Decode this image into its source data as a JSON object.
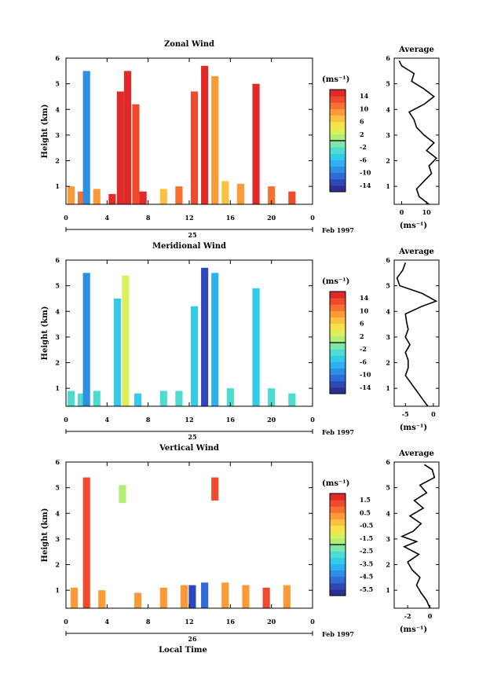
{
  "layout_note": "",
  "colorscale": [
    "#2b2f8f",
    "#2f48b8",
    "#2f6ad6",
    "#2d8ee6",
    "#2fb0f0",
    "#33cce8",
    "#4fdcd0",
    "#7ee6a8",
    "#b0ee78",
    "#dcf05a",
    "#f6e24a",
    "#fbc23f",
    "#fb9a36",
    "#f8702f",
    "#f04a2c",
    "#e02a28"
  ],
  "panels": [
    {
      "title": "Zonal Wind",
      "ylabel": "Height (km)",
      "yticks": [
        "1",
        "2",
        "3",
        "4",
        "5",
        "6"
      ],
      "xticks": [
        "0",
        "4",
        "8",
        "12",
        "16",
        "20",
        "0"
      ],
      "date_day": "25",
      "date_label": "Feb 1997",
      "cbar_unit": "(ms⁻¹)",
      "cbar_labels": [
        "14",
        "10",
        "6",
        "2",
        "-2",
        "-6",
        "-10",
        "-14"
      ],
      "profile_title": "Average",
      "profile_xticks": [
        "0",
        "10"
      ],
      "profile_xlabel": "(ms⁻¹)",
      "profile_yticks": [
        "1",
        "2",
        "3",
        "4",
        "5",
        "6"
      ]
    },
    {
      "title": "Meridional Wind",
      "ylabel": "Height (km)",
      "yticks": [
        "1",
        "2",
        "3",
        "4",
        "5",
        "6"
      ],
      "xticks": [
        "0",
        "4",
        "8",
        "12",
        "16",
        "20",
        "0"
      ],
      "date_day": "25",
      "date_label": "Feb 1997",
      "cbar_unit": "(ms⁻¹)",
      "cbar_labels": [
        "14",
        "10",
        "6",
        "2",
        "-2",
        "-6",
        "-10",
        "-14"
      ],
      "profile_title": "Average",
      "profile_xticks": [
        "-5",
        "0"
      ],
      "profile_xlabel": "(ms⁻¹)",
      "profile_yticks": [
        "1",
        "2",
        "3",
        "4",
        "5",
        "6"
      ]
    },
    {
      "title": "Vertical Wind",
      "ylabel": "Height (km)",
      "yticks": [
        "1",
        "2",
        "3",
        "4",
        "5",
        "6"
      ],
      "xticks": [
        "0",
        "4",
        "8",
        "12",
        "16",
        "20",
        "0"
      ],
      "date_day": "26",
      "date_label": "Feb 1997",
      "xlabel": "Local Time",
      "cbar_unit": "(ms⁻¹)",
      "cbar_labels": [
        "1.5",
        "0.5",
        "-0.5",
        "-1.5",
        "-2.5",
        "-3.5",
        "-4.5",
        "-5.5"
      ],
      "profile_title": "Average",
      "profile_xticks": [
        "-2",
        "0"
      ],
      "profile_xlabel": "(ms⁻¹)",
      "profile_yticks": [
        "1",
        "2",
        "3",
        "4",
        "5",
        "6"
      ]
    }
  ],
  "chart_data": [
    {
      "type": "heatmap",
      "title": "Zonal Wind",
      "ylabel": "Height (km)",
      "xlim": [
        0,
        24
      ],
      "ylim": [
        0.3,
        6
      ],
      "colorbar_range": [
        -16,
        16
      ],
      "columns": [
        {
          "x": 0.5,
          "y0": 0.3,
          "y1": 1.0,
          "v": 8
        },
        {
          "x": 1.5,
          "y0": 0.3,
          "y1": 0.8,
          "v": 10
        },
        {
          "x": 2.0,
          "y0": 0.3,
          "y1": 5.5,
          "v": -10
        },
        {
          "x": 3.0,
          "y0": 0.3,
          "y1": 0.9,
          "v": 9
        },
        {
          "x": 4.5,
          "y0": 0.3,
          "y1": 0.7,
          "v": 14
        },
        {
          "x": 5.3,
          "y0": 0.3,
          "y1": 4.7,
          "v": 15
        },
        {
          "x": 6.0,
          "y0": 0.3,
          "y1": 5.5,
          "v": 15
        },
        {
          "x": 6.8,
          "y0": 0.3,
          "y1": 4.2,
          "v": 12
        },
        {
          "x": 7.5,
          "y0": 0.3,
          "y1": 0.8,
          "v": 14
        },
        {
          "x": 9.5,
          "y0": 0.3,
          "y1": 0.9,
          "v": 6
        },
        {
          "x": 11.0,
          "y0": 0.3,
          "y1": 1.0,
          "v": 10
        },
        {
          "x": 12.5,
          "y0": 0.3,
          "y1": 4.7,
          "v": 13
        },
        {
          "x": 13.5,
          "y0": 0.3,
          "y1": 5.7,
          "v": 15
        },
        {
          "x": 14.5,
          "y0": 0.3,
          "y1": 5.3,
          "v": 8
        },
        {
          "x": 15.5,
          "y0": 0.3,
          "y1": 1.2,
          "v": 6
        },
        {
          "x": 17.0,
          "y0": 0.3,
          "y1": 1.1,
          "v": 9
        },
        {
          "x": 18.5,
          "y0": 0.3,
          "y1": 5.0,
          "v": 15
        },
        {
          "x": 20.0,
          "y0": 0.3,
          "y1": 1.0,
          "v": 10
        },
        {
          "x": 22.0,
          "y0": 0.3,
          "y1": 0.8,
          "v": 12
        }
      ],
      "profile": {
        "xlim": [
          -3,
          15
        ],
        "h": [
          0.3,
          0.6,
          0.9,
          1.2,
          1.5,
          1.8,
          2.1,
          2.4,
          2.7,
          3.0,
          3.3,
          3.6,
          3.9,
          4.2,
          4.5,
          4.8,
          5.1,
          5.4,
          5.7,
          5.9
        ],
        "v": [
          11,
          7,
          6,
          9,
          12,
          11,
          14,
          10,
          13,
          9,
          6,
          5,
          3,
          9,
          13,
          9,
          4,
          5,
          0,
          -1
        ]
      }
    },
    {
      "type": "heatmap",
      "title": "Meridional Wind",
      "ylabel": "Height (km)",
      "xlim": [
        0,
        24
      ],
      "ylim": [
        0.3,
        6
      ],
      "colorbar_range": [
        -16,
        16
      ],
      "columns": [
        {
          "x": 0.5,
          "y0": 0.3,
          "y1": 0.9,
          "v": -3
        },
        {
          "x": 1.5,
          "y0": 0.3,
          "y1": 0.8,
          "v": -4
        },
        {
          "x": 2.0,
          "y0": 0.3,
          "y1": 5.5,
          "v": -10
        },
        {
          "x": 3.0,
          "y0": 0.3,
          "y1": 0.9,
          "v": -4
        },
        {
          "x": 5.0,
          "y0": 0.3,
          "y1": 4.5,
          "v": -6
        },
        {
          "x": 5.8,
          "y0": 0.3,
          "y1": 5.4,
          "v": 2
        },
        {
          "x": 7.0,
          "y0": 0.3,
          "y1": 0.8,
          "v": -5
        },
        {
          "x": 9.5,
          "y0": 0.3,
          "y1": 0.9,
          "v": -3
        },
        {
          "x": 11.0,
          "y0": 0.3,
          "y1": 0.9,
          "v": -4
        },
        {
          "x": 12.5,
          "y0": 0.3,
          "y1": 4.2,
          "v": -6
        },
        {
          "x": 13.5,
          "y0": 0.3,
          "y1": 5.7,
          "v": -13
        },
        {
          "x": 14.5,
          "y0": 0.3,
          "y1": 5.5,
          "v": -8
        },
        {
          "x": 16.0,
          "y0": 0.3,
          "y1": 1.0,
          "v": -4
        },
        {
          "x": 18.5,
          "y0": 0.3,
          "y1": 4.9,
          "v": -6
        },
        {
          "x": 20.0,
          "y0": 0.3,
          "y1": 1.0,
          "v": -3
        },
        {
          "x": 22.0,
          "y0": 0.3,
          "y1": 0.8,
          "v": -4
        }
      ],
      "profile": {
        "xlim": [
          -7,
          1
        ],
        "h": [
          0.3,
          0.6,
          0.9,
          1.2,
          1.5,
          1.8,
          2.1,
          2.4,
          2.7,
          3.0,
          3.3,
          3.6,
          3.9,
          4.2,
          4.4,
          4.7,
          5.0,
          5.3,
          5.6,
          5.9
        ],
        "v": [
          -1,
          -2,
          -3,
          -4,
          -5,
          -4.5,
          -4.5,
          -5,
          -4.2,
          -5,
          -4.5,
          -4.8,
          -5,
          -2,
          0.5,
          -2,
          -6,
          -6.5,
          -5.5,
          -5
        ]
      }
    },
    {
      "type": "heatmap",
      "title": "Vertical Wind",
      "xlabel": "Local Time",
      "ylabel": "Height (km)",
      "xlim": [
        0,
        24
      ],
      "ylim": [
        0.3,
        6
      ],
      "colorbar_range": [
        -6.5,
        2.5
      ],
      "columns": [
        {
          "x": 0.8,
          "y0": 0.3,
          "y1": 1.1,
          "v": 0.3
        },
        {
          "x": 2.0,
          "y0": 0.3,
          "y1": 5.4,
          "v": 1.4
        },
        {
          "x": 3.5,
          "y0": 0.3,
          "y1": 1.0,
          "v": 0.5
        },
        {
          "x": 5.5,
          "y0": 4.4,
          "y1": 5.1,
          "v": -1.5
        },
        {
          "x": 7.0,
          "y0": 0.3,
          "y1": 0.9,
          "v": 0.4
        },
        {
          "x": 9.5,
          "y0": 0.3,
          "y1": 1.1,
          "v": 0.6
        },
        {
          "x": 11.5,
          "y0": 0.3,
          "y1": 1.2,
          "v": 0.4
        },
        {
          "x": 12.3,
          "y0": 0.3,
          "y1": 1.2,
          "v": -5.5
        },
        {
          "x": 13.5,
          "y0": 0.3,
          "y1": 1.3,
          "v": -5.0
        },
        {
          "x": 14.5,
          "y0": 4.5,
          "y1": 5.4,
          "v": 1.5
        },
        {
          "x": 15.5,
          "y0": 0.3,
          "y1": 1.3,
          "v": 0.4
        },
        {
          "x": 17.5,
          "y0": 0.3,
          "y1": 1.2,
          "v": 0.5
        },
        {
          "x": 19.5,
          "y0": 0.3,
          "y1": 1.1,
          "v": 1.5
        },
        {
          "x": 21.5,
          "y0": 0.3,
          "y1": 1.2,
          "v": 0.4
        }
      ],
      "profile": {
        "xlim": [
          -3.2,
          0.8
        ],
        "h": [
          0.3,
          0.6,
          0.9,
          1.2,
          1.5,
          1.8,
          2.1,
          2.4,
          2.7,
          2.9,
          3.1,
          3.3,
          3.6,
          3.9,
          4.2,
          4.5,
          4.8,
          5.1,
          5.4,
          5.7,
          5.9
        ],
        "v": [
          0,
          -0.3,
          -0.8,
          -1.2,
          -0.9,
          -1.6,
          -2.0,
          -1.0,
          -2.3,
          -1.2,
          -2.5,
          -1.5,
          -0.8,
          -1.8,
          -0.6,
          -1.4,
          -0.3,
          -0.9,
          0.4,
          0.2,
          -0.5
        ]
      }
    }
  ]
}
